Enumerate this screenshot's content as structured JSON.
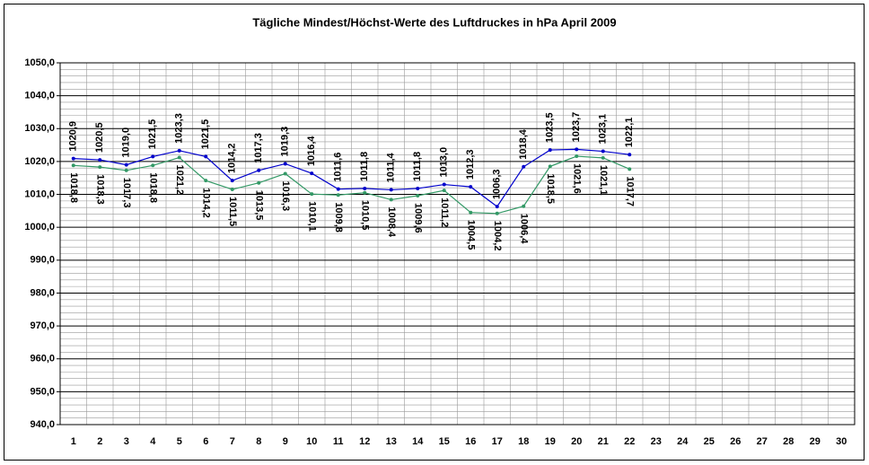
{
  "chart_data": {
    "type": "line",
    "title": "Tägliche Mindest/Höchst-Werte des Luftdruckes in hPa April 2009",
    "categories": [
      "1",
      "2",
      "3",
      "4",
      "5",
      "6",
      "7",
      "8",
      "9",
      "10",
      "11",
      "12",
      "13",
      "14",
      "15",
      "16",
      "17",
      "18",
      "19",
      "20",
      "21",
      "22",
      "23",
      "24",
      "25",
      "26",
      "27",
      "28",
      "29",
      "30"
    ],
    "series": [
      {
        "color": "#0000cc",
        "values": [
          1020.9,
          1020.5,
          1019.0,
          1021.5,
          1023.3,
          1021.5,
          1014.2,
          1017.3,
          1019.3,
          1016.4,
          1011.6,
          1011.8,
          1011.4,
          1011.8,
          1013.0,
          1012.3,
          1006.3,
          1018.4,
          1023.5,
          1023.7,
          1023.1,
          1022.1,
          null,
          null,
          null,
          null,
          null,
          null,
          null,
          null
        ],
        "value_labels": [
          "1020,9",
          "1020,5",
          "1019,0",
          "1021,5",
          "1023,3",
          "1021,5",
          "1014,2",
          "1017,3",
          "1019,3",
          "1016,4",
          "1011,6",
          "1011,8",
          "1011,4",
          "1011,8",
          "1013,0",
          "1012,3",
          "1006,3",
          "1018,4",
          "1023,5",
          "1023,7",
          "1023,1",
          "1022,1",
          null,
          null,
          null,
          null,
          null,
          null,
          null,
          null
        ]
      },
      {
        "color": "#339966",
        "values": [
          1018.8,
          1018.3,
          1017.3,
          1018.8,
          1021.2,
          1014.2,
          1011.5,
          1013.5,
          1016.3,
          1010.1,
          1009.8,
          1010.5,
          1008.4,
          1009.6,
          1011.2,
          1004.5,
          1004.2,
          1006.4,
          1018.5,
          1021.6,
          1021.1,
          1017.7,
          null,
          null,
          null,
          null,
          null,
          null,
          null,
          null
        ],
        "value_labels": [
          "1018,8",
          "1018,3",
          "1017,3",
          "1018,8",
          "1021,2",
          "1014,2",
          "1011,5",
          "1013,5",
          "1016,3",
          "1010,1",
          "1009,8",
          "1010,5",
          "1008,4",
          "1009,6",
          "1011,2",
          "1004,5",
          "1004,2",
          "1006,4",
          "1018,5",
          "1021,6",
          "1021,1",
          "1017,7",
          null,
          null,
          null,
          null,
          null,
          null,
          null,
          null
        ]
      }
    ],
    "ylim": [
      940,
      1050
    ],
    "yticks": [
      {
        "value": 940,
        "label": "940,0"
      },
      {
        "value": 950,
        "label": "950,0"
      },
      {
        "value": 960,
        "label": "960,0"
      },
      {
        "value": 970,
        "label": "970,0"
      },
      {
        "value": 980,
        "label": "980,0"
      },
      {
        "value": 990,
        "label": "990,0"
      },
      {
        "value": 1000,
        "label": "1000,0"
      },
      {
        "value": 1010,
        "label": "1010,0"
      },
      {
        "value": 1020,
        "label": "1020,0"
      },
      {
        "value": 1030,
        "label": "1030,0"
      },
      {
        "value": 1040,
        "label": "1040,0"
      },
      {
        "value": 1050,
        "label": "1050,0"
      }
    ],
    "yticks_minor": [
      942,
      944,
      946,
      948,
      952,
      954,
      956,
      958,
      962,
      964,
      966,
      968,
      972,
      974,
      976,
      978,
      982,
      984,
      986,
      988,
      992,
      994,
      996,
      998,
      1002,
      1004,
      1006,
      1008,
      1012,
      1014,
      1016,
      1018,
      1022,
      1024,
      1026,
      1028,
      1032,
      1034,
      1036,
      1038,
      1042,
      1044,
      1046,
      1048
    ],
    "grid": true
  }
}
